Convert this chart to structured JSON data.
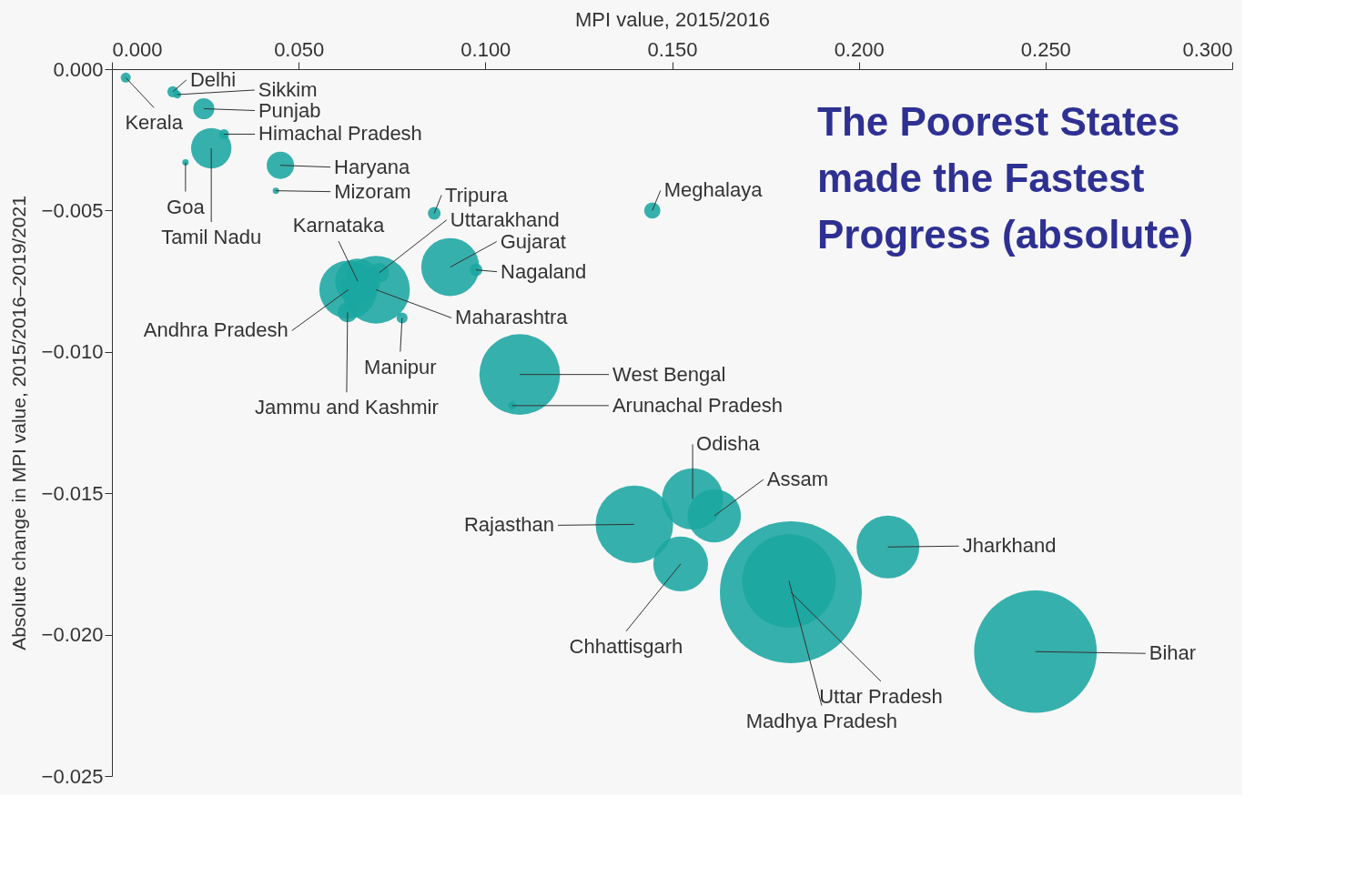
{
  "chart_data": {
    "type": "bubble",
    "title": "The Poorest States made the Fastest Progress (absolute)",
    "xlabel": "MPI value, 2015/2016",
    "ylabel": "Absolute change in MPI value, 2015/2016–2019/2021",
    "xlim": [
      0,
      0.3
    ],
    "ylim": [
      -0.025,
      0
    ],
    "xticks": [
      {
        "value": 0,
        "label": "0.000"
      },
      {
        "value": 0.05,
        "label": "0.050"
      },
      {
        "value": 0.1,
        "label": "0.100"
      },
      {
        "value": 0.15,
        "label": "0.150"
      },
      {
        "value": 0.2,
        "label": "0.200"
      },
      {
        "value": 0.25,
        "label": "0.250"
      },
      {
        "value": 0.3,
        "label": "0.300"
      }
    ],
    "yticks": [
      {
        "value": 0,
        "label": "0.000"
      },
      {
        "value": -0.005,
        "label": "−0.005"
      },
      {
        "value": -0.01,
        "label": "−0.010"
      },
      {
        "value": -0.015,
        "label": "−0.015"
      },
      {
        "value": -0.02,
        "label": "−0.020"
      },
      {
        "value": -0.025,
        "label": "−0.025"
      }
    ],
    "grid": false,
    "legend": false,
    "x": [
      0.0037,
      0.0163,
      0.0175,
      0.0246,
      0.03,
      0.0266,
      0.0197,
      0.0451,
      0.0439,
      0.0863,
      0.1447,
      0.0716,
      0.0906,
      0.0975,
      0.0658,
      0.0707,
      0.0633,
      0.0631,
      0.0777,
      0.1092,
      0.1072,
      0.1555,
      0.1613,
      0.1399,
      0.1523,
      0.2078,
      0.1818,
      0.1813,
      0.2473
    ],
    "series": [
      {
        "color": "#1aa6a0",
        "values": [
          -0.0003,
          -0.0008,
          -0.0009,
          -0.0014,
          -0.0023,
          -0.0028,
          -0.0033,
          -0.0034,
          -0.0043,
          -0.0051,
          -0.005,
          -0.0072,
          -0.007,
          -0.0071,
          -0.0075,
          -0.0078,
          -0.0078,
          -0.0086,
          -0.0088,
          -0.0108,
          -0.0119,
          -0.0152,
          -0.0158,
          -0.0161,
          -0.0175,
          -0.0169,
          -0.0185,
          -0.0181,
          -0.0206
        ],
        "sizes": [
          0.005,
          0.006,
          0.003,
          0.022,
          0.005,
          0.081,
          0.002,
          0.037,
          0.002,
          0.008,
          0.013,
          0.019,
          0.167,
          0.008,
          0.101,
          0.228,
          0.167,
          0.019,
          0.006,
          0.323,
          0.003,
          0.186,
          0.141,
          0.298,
          0.149,
          0.196,
          1,
          0.434,
          0.746
        ]
      }
    ],
    "annotations": [
      {
        "text": "Kerala",
        "x": 0.0037,
        "y": -0.0003
      },
      {
        "text": "Delhi",
        "x": 0.0163,
        "y": -0.0008
      },
      {
        "text": "Sikkim",
        "x": 0.0175,
        "y": -0.0009
      },
      {
        "text": "Punjab",
        "x": 0.0246,
        "y": -0.0014
      },
      {
        "text": "Himachal Pradesh",
        "x": 0.03,
        "y": -0.0023
      },
      {
        "text": "Tamil Nadu",
        "x": 0.0266,
        "y": -0.0028
      },
      {
        "text": "Goa",
        "x": 0.0197,
        "y": -0.0033
      },
      {
        "text": "Haryana",
        "x": 0.0451,
        "y": -0.0034
      },
      {
        "text": "Mizoram",
        "x": 0.0439,
        "y": -0.0043
      },
      {
        "text": "Tripura",
        "x": 0.0863,
        "y": -0.0051
      },
      {
        "text": "Meghalaya",
        "x": 0.1447,
        "y": -0.005
      },
      {
        "text": "Uttarakhand",
        "x": 0.0716,
        "y": -0.0072
      },
      {
        "text": "Gujarat",
        "x": 0.0906,
        "y": -0.007
      },
      {
        "text": "Nagaland",
        "x": 0.0975,
        "y": -0.0071
      },
      {
        "text": "Karnataka",
        "x": 0.0658,
        "y": -0.0075
      },
      {
        "text": "Maharashtra",
        "x": 0.0707,
        "y": -0.0078
      },
      {
        "text": "Andhra Pradesh",
        "x": 0.0633,
        "y": -0.0078
      },
      {
        "text": "Jammu and Kashmir",
        "x": 0.0631,
        "y": -0.0086
      },
      {
        "text": "Manipur",
        "x": 0.0777,
        "y": -0.0088
      },
      {
        "text": "West Bengal",
        "x": 0.1092,
        "y": -0.0108
      },
      {
        "text": "Arunachal Pradesh",
        "x": 0.1072,
        "y": -0.0119
      },
      {
        "text": "Odisha",
        "x": 0.1555,
        "y": -0.0152
      },
      {
        "text": "Assam",
        "x": 0.1613,
        "y": -0.0158
      },
      {
        "text": "Rajasthan",
        "x": 0.1399,
        "y": -0.0161
      },
      {
        "text": "Chhattisgarh",
        "x": 0.1523,
        "y": -0.0175
      },
      {
        "text": "Jharkhand",
        "x": 0.2078,
        "y": -0.0169
      },
      {
        "text": "Uttar Pradesh",
        "x": 0.1818,
        "y": -0.0185
      },
      {
        "text": "Madhya Pradesh",
        "x": 0.1813,
        "y": -0.0181
      },
      {
        "text": "Bihar",
        "x": 0.2473,
        "y": -0.0206
      }
    ]
  }
}
